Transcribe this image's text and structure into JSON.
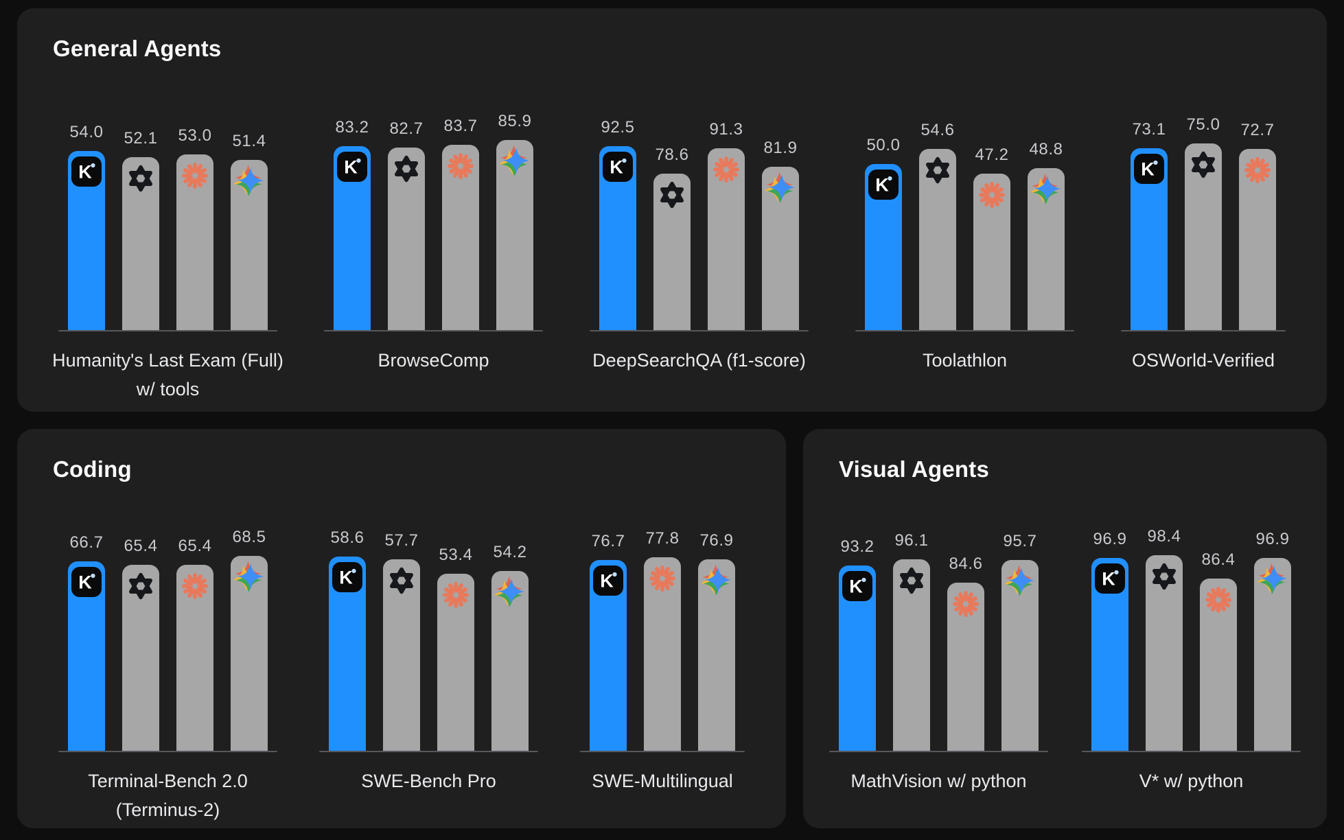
{
  "colors": {
    "page_bg": "#0E0E0F",
    "panel_bg": "#1F1F20",
    "highlight_bar": "#2190FF",
    "default_bar": "#A7A7A8",
    "axis_line": "#56585C",
    "value_text": "#C9CACD",
    "label_text": "#E9EAEC",
    "title_text": "#FAFAFC",
    "kimi_logo_bg": "#0A0A0B",
    "openai_logo": "#17181B",
    "anthropic_logo": "#E8795B",
    "gemini_blue": "#3F8EF7"
  },
  "chart_data": [
    {
      "type": "bar",
      "title": "General Agents",
      "legend_position": "none",
      "grid": false,
      "value_labels": true,
      "groups": [
        {
          "category": "Humanity's Last Exam (Full) w/ tools",
          "category_lines": [
            "Humanity's Last Exam (Full)",
            "w/ tools"
          ],
          "bars": [
            {
              "icon": "kimi-k-icon",
              "value": 54.0,
              "highlight": true
            },
            {
              "icon": "openai-icon",
              "value": 52.1,
              "highlight": false
            },
            {
              "icon": "anthropic-icon",
              "value": 53.0,
              "highlight": false
            },
            {
              "icon": "gemini-icon",
              "value": 51.4,
              "highlight": false
            }
          ]
        },
        {
          "category": "BrowseComp",
          "category_lines": [
            "BrowseComp"
          ],
          "bars": [
            {
              "icon": "kimi-k-icon",
              "value": 83.2,
              "highlight": true
            },
            {
              "icon": "openai-icon",
              "value": 82.7,
              "highlight": false
            },
            {
              "icon": "anthropic-icon",
              "value": 83.7,
              "highlight": false
            },
            {
              "icon": "gemini-icon",
              "value": 85.9,
              "highlight": false
            }
          ]
        },
        {
          "category": "DeepSearchQA (f1-score)",
          "category_lines": [
            "DeepSearchQA (f1-score)"
          ],
          "bars": [
            {
              "icon": "kimi-k-icon",
              "value": 92.5,
              "highlight": true
            },
            {
              "icon": "openai-icon",
              "value": 78.6,
              "highlight": false
            },
            {
              "icon": "anthropic-icon",
              "value": 91.3,
              "highlight": false
            },
            {
              "icon": "gemini-icon",
              "value": 81.9,
              "highlight": false
            }
          ]
        },
        {
          "category": "Toolathlon",
          "category_lines": [
            "Toolathlon"
          ],
          "bars": [
            {
              "icon": "kimi-k-icon",
              "value": 50.0,
              "highlight": true
            },
            {
              "icon": "openai-icon",
              "value": 54.6,
              "highlight": false
            },
            {
              "icon": "anthropic-icon",
              "value": 47.2,
              "highlight": false
            },
            {
              "icon": "gemini-icon",
              "value": 48.8,
              "highlight": false
            }
          ]
        },
        {
          "category": "OSWorld-Verified",
          "category_lines": [
            "OSWorld-Verified"
          ],
          "bars": [
            {
              "icon": "kimi-k-icon",
              "value": 73.1,
              "highlight": true
            },
            {
              "icon": "openai-icon",
              "value": 75.0,
              "highlight": false
            },
            {
              "icon": "anthropic-icon",
              "value": 72.7,
              "highlight": false
            }
          ]
        }
      ]
    },
    {
      "type": "bar",
      "title": "Coding",
      "legend_position": "none",
      "grid": false,
      "value_labels": true,
      "groups": [
        {
          "category": "Terminal-Bench 2.0 (Terminus-2)",
          "category_lines": [
            "Terminal-Bench 2.0",
            "(Terminus-2)"
          ],
          "bars": [
            {
              "icon": "kimi-k-icon",
              "value": 66.7,
              "highlight": true
            },
            {
              "icon": "openai-icon",
              "value": 65.4,
              "highlight": false
            },
            {
              "icon": "anthropic-icon",
              "value": 65.4,
              "highlight": false
            },
            {
              "icon": "gemini-icon",
              "value": 68.5,
              "highlight": false
            }
          ]
        },
        {
          "category": "SWE-Bench Pro",
          "category_lines": [
            "SWE-Bench Pro"
          ],
          "bars": [
            {
              "icon": "kimi-k-icon",
              "value": 58.6,
              "highlight": true
            },
            {
              "icon": "openai-icon",
              "value": 57.7,
              "highlight": false
            },
            {
              "icon": "anthropic-icon",
              "value": 53.4,
              "highlight": false
            },
            {
              "icon": "gemini-icon",
              "value": 54.2,
              "highlight": false
            }
          ]
        },
        {
          "category": "SWE-Multilingual",
          "category_lines": [
            "SWE-Multilingual"
          ],
          "bars": [
            {
              "icon": "kimi-k-icon",
              "value": 76.7,
              "highlight": true
            },
            {
              "icon": "anthropic-icon",
              "value": 77.8,
              "highlight": false
            },
            {
              "icon": "gemini-icon",
              "value": 76.9,
              "highlight": false
            }
          ]
        }
      ]
    },
    {
      "type": "bar",
      "title": "Visual Agents",
      "legend_position": "none",
      "grid": false,
      "value_labels": true,
      "groups": [
        {
          "category": "MathVision w/ python",
          "category_lines": [
            "MathVision w/ python"
          ],
          "bars": [
            {
              "icon": "kimi-k-icon",
              "value": 93.2,
              "highlight": true
            },
            {
              "icon": "openai-icon",
              "value": 96.1,
              "highlight": false
            },
            {
              "icon": "anthropic-icon",
              "value": 84.6,
              "highlight": false
            },
            {
              "icon": "gemini-icon",
              "value": 95.7,
              "highlight": false
            }
          ]
        },
        {
          "category": "V* w/ python",
          "category_lines": [
            "V* w/ python"
          ],
          "bars": [
            {
              "icon": "kimi-k-icon",
              "value": 96.9,
              "highlight": true
            },
            {
              "icon": "openai-icon",
              "value": 98.4,
              "highlight": false
            },
            {
              "icon": "anthropic-icon",
              "value": 86.4,
              "highlight": false
            },
            {
              "icon": "gemini-icon",
              "value": 96.9,
              "highlight": false
            }
          ]
        }
      ]
    }
  ]
}
